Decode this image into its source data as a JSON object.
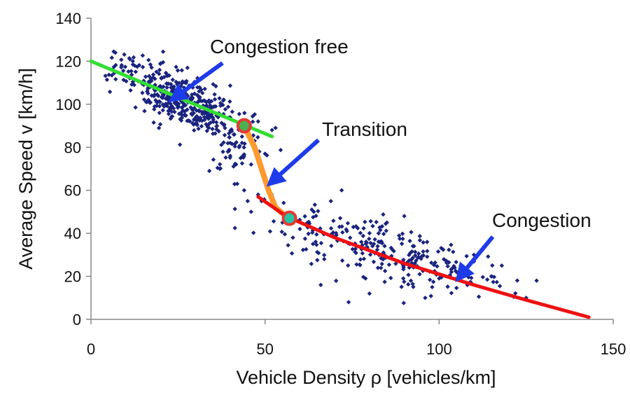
{
  "chart_data": {
    "type": "scatter",
    "title": "",
    "xlabel": "Vehicle Density ρ [vehicles/km]",
    "ylabel": "Average Speed v [km/h]",
    "xlim": [
      0,
      150
    ],
    "ylim": [
      0,
      140
    ],
    "xticks": [
      "0",
      "50",
      "100",
      "150"
    ],
    "yticks": [
      "0",
      "20",
      "40",
      "60",
      "80",
      "100",
      "120",
      "140"
    ],
    "grid": false,
    "legend": "none",
    "scatter": {
      "color": "#1a237e",
      "clusters": [
        {
          "n": 420,
          "cx": 25,
          "cy": 100,
          "sx": 9,
          "sy": 7
        },
        {
          "n": 40,
          "cx": 42,
          "cy": 80,
          "sx": 4,
          "sy": 6
        },
        {
          "n": 200,
          "cx": 78,
          "cy": 35,
          "sx": 14,
          "sy": 8
        },
        {
          "n": 60,
          "cx": 100,
          "cy": 22,
          "sx": 10,
          "sy": 6
        }
      ],
      "points": [
        [
          7,
          124
        ],
        [
          12,
          120
        ],
        [
          20,
          119
        ],
        [
          45,
          86
        ],
        [
          47,
          83
        ],
        [
          48,
          92
        ],
        [
          52,
          88
        ],
        [
          53,
          89
        ],
        [
          50,
          77
        ],
        [
          46,
          72
        ],
        [
          40,
          76
        ],
        [
          37,
          70
        ],
        [
          34,
          69
        ],
        [
          42,
          63
        ],
        [
          44,
          60
        ],
        [
          45,
          55
        ],
        [
          48,
          58
        ],
        [
          46,
          50
        ],
        [
          49,
          55
        ],
        [
          55,
          45
        ],
        [
          60,
          42
        ],
        [
          66,
          16
        ],
        [
          74,
          8
        ],
        [
          80,
          12
        ],
        [
          96,
          10
        ],
        [
          98,
          15
        ],
        [
          105,
          22
        ],
        [
          110,
          30
        ],
        [
          118,
          25
        ],
        [
          125,
          10
        ],
        [
          128,
          18
        ],
        [
          72,
          60
        ],
        [
          85,
          45
        ],
        [
          90,
          48
        ],
        [
          64,
          50
        ],
        [
          58,
          38
        ],
        [
          115,
          20
        ]
      ]
    },
    "series": [
      {
        "color": "#33dd33",
        "points": [
          [
            0,
            120
          ],
          [
            52,
            85
          ]
        ]
      },
      {
        "color": "#ff9a2e",
        "points": [
          [
            44,
            90
          ],
          [
            47,
            80
          ],
          [
            49,
            70
          ],
          [
            51,
            60
          ],
          [
            53,
            52
          ],
          [
            56,
            48
          ]
        ]
      },
      {
        "color": "#ee1111",
        "points": [
          [
            48,
            57
          ],
          [
            56,
            48
          ],
          [
            70,
            38
          ],
          [
            90,
            26
          ],
          [
            110,
            16
          ],
          [
            125,
            9
          ],
          [
            143,
            1
          ]
        ]
      }
    ],
    "markers": [
      {
        "x": 44,
        "y": 90,
        "fill": "#4caf50",
        "stroke": "#e53935"
      },
      {
        "x": 57,
        "y": 47,
        "fill": "#26c6a6",
        "stroke": "#e53935"
      }
    ],
    "annotations": [
      {
        "text": "Congestion free",
        "x": 60,
        "y": 127,
        "arrow_to": [
          24,
          103
        ]
      },
      {
        "text": "Transition",
        "x": 67,
        "y": 87,
        "arrow_to": [
          52,
          64
        ]
      },
      {
        "text": "Congestion",
        "x": 116,
        "y": 44,
        "arrow_to": [
          106,
          20
        ]
      }
    ],
    "colors": {
      "arrow": "#1e3bea",
      "axis": "#888888"
    }
  }
}
